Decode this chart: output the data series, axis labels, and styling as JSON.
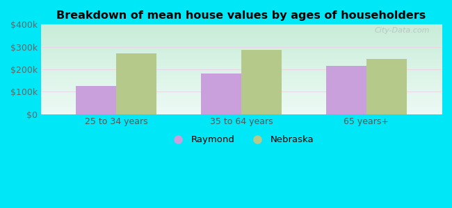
{
  "title": "Breakdown of mean house values by ages of householders",
  "categories": [
    "25 to 34 years",
    "35 to 64 years",
    "65 years+"
  ],
  "raymond_values": [
    125000,
    182000,
    215000
  ],
  "nebraska_values": [
    270000,
    287000,
    245000
  ],
  "raymond_color": "#c9a0dc",
  "nebraska_color": "#b5c98a",
  "ylim": [
    0,
    400000
  ],
  "yticks": [
    0,
    100000,
    200000,
    300000,
    400000
  ],
  "ytick_labels": [
    "$0",
    "$100k",
    "$200k",
    "$300k",
    "$400k"
  ],
  "background_outer": "#00e8f8",
  "bg_top": "#edfaf5",
  "bg_bottom": "#c8edd8",
  "legend_raymond": "Raymond",
  "legend_nebraska": "Nebraska",
  "bar_width": 0.32,
  "watermark": "City-Data.com"
}
